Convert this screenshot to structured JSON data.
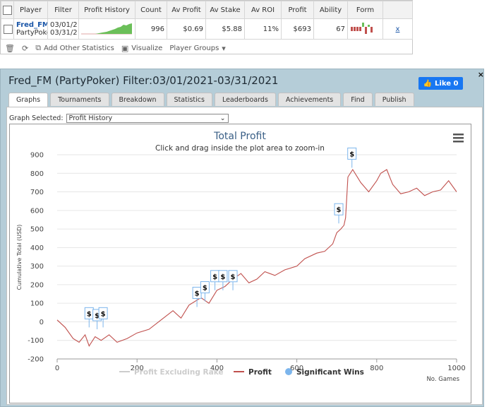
{
  "summary": {
    "headers": [
      "Player",
      "Filter",
      "Profit History",
      "Count",
      "Av Profit",
      "Av Stake",
      "Av ROI",
      "Profit",
      "Ability",
      "Form"
    ],
    "row": {
      "player_name": "Fred_FM",
      "player_site": "PartyPoker",
      "filter_line1": "03/01/2",
      "filter_line2": "03/31/2",
      "count": "996",
      "av_profit": "$0.69",
      "av_stake": "$5.88",
      "av_roi": "11%",
      "profit": "$693",
      "ability": "67",
      "remove": "x"
    },
    "toolbar": {
      "add_stats": "Add Other Statistics",
      "visualize": "Visualize",
      "player_groups": "Player Groups"
    }
  },
  "panel": {
    "title": "Fred_FM (PartyPoker) Filter:03/01/2021-03/31/2021",
    "like_label": "Like 0",
    "close": "×",
    "tabs": [
      "Graphs",
      "Tournaments",
      "Breakdown",
      "Statistics",
      "Leaderboards",
      "Achievements",
      "Find",
      "Publish"
    ],
    "active_tab": "Graphs",
    "graph_selected_label": "Graph Selected:",
    "graph_selected_value": "Profit History"
  },
  "colors": {
    "profit_line": "#c0504d",
    "excl_rake_line": "#cccccc",
    "sig_wins_marker": "#7cb5ec",
    "title": "#333333",
    "like_button": "#1877f2"
  },
  "chart_data": {
    "type": "line",
    "title": "Total Profit",
    "subtitle": "Click and drag inside the plot area to zoom-in",
    "xlabel": "No. Games",
    "ylabel": "Cumulative Total (USD)",
    "xlim": [
      0,
      1000
    ],
    "ylim": [
      -200,
      900
    ],
    "x_ticks": [
      "0",
      "200",
      "400",
      "600",
      "800",
      "1000"
    ],
    "y_ticks": [
      "-200",
      "-100",
      "0",
      "100",
      "200",
      "300",
      "400",
      "500",
      "600",
      "700",
      "800",
      "900"
    ],
    "legend": [
      "Profit Excluding Rake",
      "Profit",
      "Significant Wins"
    ],
    "series": [
      {
        "name": "Profit",
        "x": [
          0,
          20,
          40,
          55,
          70,
          80,
          95,
          110,
          130,
          150,
          175,
          200,
          230,
          260,
          290,
          310,
          330,
          360,
          380,
          400,
          420,
          440,
          460,
          480,
          500,
          520,
          545,
          570,
          600,
          620,
          650,
          670,
          690,
          700,
          710,
          718,
          722,
          728,
          740,
          760,
          780,
          800,
          810,
          825,
          840,
          860,
          880,
          900,
          920,
          940,
          960,
          980,
          1000
        ],
        "y": [
          10,
          -30,
          -90,
          -110,
          -70,
          -130,
          -80,
          -100,
          -70,
          -110,
          -90,
          -60,
          -40,
          10,
          60,
          20,
          90,
          130,
          100,
          170,
          190,
          230,
          260,
          210,
          230,
          270,
          250,
          280,
          300,
          340,
          370,
          380,
          420,
          480,
          500,
          520,
          560,
          780,
          820,
          750,
          700,
          760,
          800,
          820,
          740,
          690,
          700,
          720,
          680,
          700,
          710,
          760,
          700
        ]
      }
    ],
    "significant_wins": {
      "name": "Significant Wins",
      "x": [
        80,
        100,
        115,
        350,
        370,
        395,
        415,
        440,
        705,
        738
      ],
      "y": [
        -30,
        -40,
        -30,
        80,
        110,
        170,
        170,
        170,
        530,
        830
      ]
    }
  }
}
